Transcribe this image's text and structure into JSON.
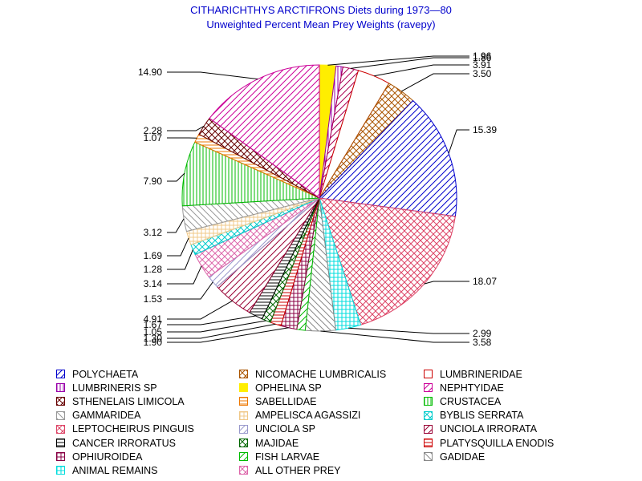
{
  "chart_data": {
    "type": "pie",
    "title": "CITHARICHTHYS ARCTIFRONS Diets during 1973—80",
    "subtitle": "Unweighted Percent Mean Prey Weights (ravepy)",
    "labeled_values": [
      "1.96",
      "1.86",
      "3.91",
      "3.50",
      "15.39",
      "18.07",
      "2.99",
      "3.58",
      "1.90",
      "1.30",
      "1.05",
      "1.67",
      "4.91",
      "1.53",
      "3.14",
      "1.28",
      "1.69",
      "3.12",
      "7.90",
      "1.07",
      "2.28",
      "14.90"
    ],
    "slices": [
      {
        "name": "OPHELINA SP",
        "value": 1.96,
        "label": "1.96",
        "color": "#ffee00",
        "pattern": "solid"
      },
      {
        "name": "LUMBRINERIS SP",
        "value": 0.8,
        "label": "",
        "color": "#9900aa",
        "pattern": "vline"
      },
      {
        "name": "NEPHTYIDAE",
        "value": 1.86,
        "label": "1.86",
        "color": "#aa0055",
        "pattern": "diag1"
      },
      {
        "name": "LUMBRINERIDAE",
        "value": 3.91,
        "label": "3.91",
        "color": "#cc0000",
        "pattern": "box"
      },
      {
        "name": "NICOMACHE LUMBRICALIS",
        "value": 3.5,
        "label": "3.50",
        "color": "#aa5500",
        "pattern": "cross"
      },
      {
        "name": "POLYCHAETA",
        "value": 15.39,
        "label": "15.39",
        "color": "#0000cc",
        "pattern": "diag1"
      },
      {
        "name": "LEPTOCHEIRUS PINGUIS",
        "value": 18.07,
        "label": "18.07",
        "color": "#dd4466",
        "pattern": "cross"
      },
      {
        "name": "ANIMAL REMAINS",
        "value": 2.99,
        "label": "2.99",
        "color": "#00dddd",
        "pattern": "grid"
      },
      {
        "name": "GADIDAE",
        "value": 3.58,
        "label": "3.58",
        "color": "#888888",
        "pattern": "diag2"
      },
      {
        "name": "FISH LARVAE",
        "value": 1.0,
        "label": "",
        "color": "#00bb00",
        "pattern": "diag1"
      },
      {
        "name": "OPHIUROIDEA",
        "value": 1.9,
        "label": "1.90",
        "color": "#880044",
        "pattern": "grid"
      },
      {
        "name": "PLATYSQUILLA ENODIS",
        "value": 1.3,
        "label": "1.30",
        "color": "#cc0000",
        "pattern": "hline"
      },
      {
        "name": "MAJIDAE",
        "value": 1.05,
        "label": "1.05",
        "color": "#006600",
        "pattern": "cross"
      },
      {
        "name": "CANCER IRRORATUS",
        "value": 1.67,
        "label": "1.67",
        "color": "#000000",
        "pattern": "hline"
      },
      {
        "name": "UNCIOLA IRRORATA",
        "value": 4.91,
        "label": "4.91",
        "color": "#990033",
        "pattern": "diag1"
      },
      {
        "name": "UNCIOLA SP",
        "value": 1.53,
        "label": "1.53",
        "color": "#9999cc",
        "pattern": "diag1"
      },
      {
        "name": "ALL OTHER PREY",
        "value": 3.14,
        "label": "3.14",
        "color": "#dd66aa",
        "pattern": "cross"
      },
      {
        "name": "BYBLIS SERRATA",
        "value": 1.28,
        "label": "1.28",
        "color": "#00cccc",
        "pattern": "cross"
      },
      {
        "name": "AMPELISCA AGASSIZI",
        "value": 1.69,
        "label": "1.69",
        "color": "#f0c888",
        "pattern": "grid"
      },
      {
        "name": "GAMMARIDEA",
        "value": 3.12,
        "label": "3.12",
        "color": "#999999",
        "pattern": "diag2"
      },
      {
        "name": "CRUSTACEA",
        "value": 7.9,
        "label": "7.90",
        "color": "#00bb00",
        "pattern": "vline"
      },
      {
        "name": "SABELLIDAE",
        "value": 1.07,
        "label": "1.07",
        "color": "#ee7700",
        "pattern": "hline"
      },
      {
        "name": "STHENELAIS LIMICOLA",
        "value": 2.28,
        "label": "2.28",
        "color": "#660000",
        "pattern": "cross"
      },
      {
        "name": "NEPHTYIDAE",
        "value": 14.9,
        "label": "14.90",
        "color": "#cc0099",
        "pattern": "diag1"
      }
    ],
    "legend": [
      {
        "name": "POLYCHAETA",
        "color": "#0000cc",
        "pattern": "diag1"
      },
      {
        "name": "NICOMACHE LUMBRICALIS",
        "color": "#aa5500",
        "pattern": "cross"
      },
      {
        "name": "LUMBRINERIDAE",
        "color": "#cc0000",
        "pattern": "box"
      },
      {
        "name": "LUMBRINERIS SP",
        "color": "#9900aa",
        "pattern": "vline"
      },
      {
        "name": "OPHELINA SP",
        "color": "#ffee00",
        "pattern": "solid"
      },
      {
        "name": "NEPHTYIDAE",
        "color": "#cc0099",
        "pattern": "diag1"
      },
      {
        "name": "STHENELAIS LIMICOLA",
        "color": "#660000",
        "pattern": "cross"
      },
      {
        "name": "SABELLIDAE",
        "color": "#ee7700",
        "pattern": "hline"
      },
      {
        "name": "CRUSTACEA",
        "color": "#00bb00",
        "pattern": "vline"
      },
      {
        "name": "GAMMARIDEA",
        "color": "#999999",
        "pattern": "diag2"
      },
      {
        "name": "AMPELISCA AGASSIZI",
        "color": "#f0c888",
        "pattern": "grid"
      },
      {
        "name": "BYBLIS SERRATA",
        "color": "#00cccc",
        "pattern": "cross"
      },
      {
        "name": "LEPTOCHEIRUS PINGUIS",
        "color": "#dd4466",
        "pattern": "cross"
      },
      {
        "name": "UNCIOLA SP",
        "color": "#9999cc",
        "pattern": "diag1"
      },
      {
        "name": "UNCIOLA IRRORATA",
        "color": "#990033",
        "pattern": "diag1"
      },
      {
        "name": "CANCER IRRORATUS",
        "color": "#000000",
        "pattern": "hline"
      },
      {
        "name": "MAJIDAE",
        "color": "#006600",
        "pattern": "cross"
      },
      {
        "name": "PLATYSQUILLA ENODIS",
        "color": "#cc0000",
        "pattern": "hline"
      },
      {
        "name": "OPHIUROIDEA",
        "color": "#880044",
        "pattern": "grid"
      },
      {
        "name": "FISH LARVAE",
        "color": "#00bb00",
        "pattern": "diag1"
      },
      {
        "name": "GADIDAE",
        "color": "#888888",
        "pattern": "diag2"
      },
      {
        "name": "ANIMAL REMAINS",
        "color": "#00dddd",
        "pattern": "grid"
      },
      {
        "name": "ALL OTHER PREY",
        "color": "#dd66aa",
        "pattern": "cross"
      }
    ],
    "legend_position": "bottom",
    "legend_columns": 3
  }
}
